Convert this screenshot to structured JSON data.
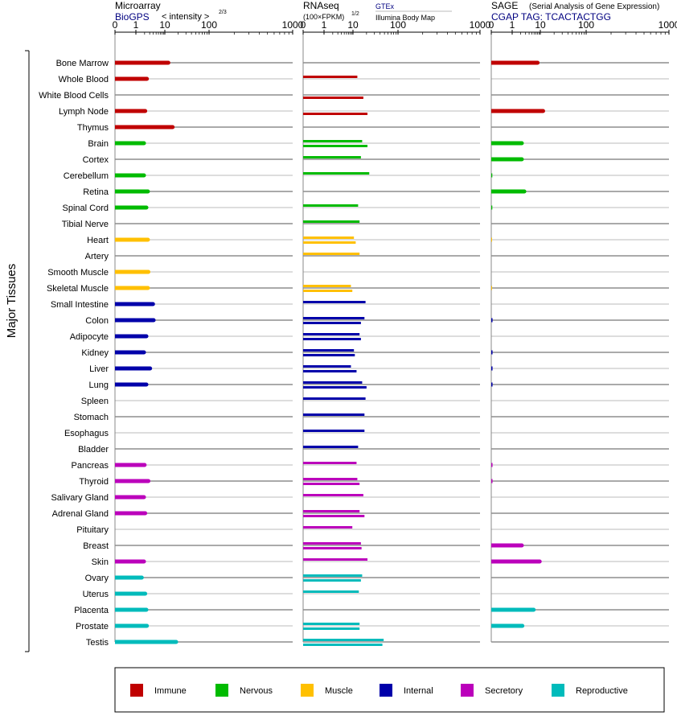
{
  "chart_data": {
    "type": "bar",
    "y_axis_label": "Major Tissues",
    "tick_labels": [
      "0",
      "1",
      "10",
      "100",
      "1000"
    ],
    "panels": [
      {
        "id": "microarray",
        "title": "Microarray",
        "source": "BioGPS",
        "unit": "< intensity >",
        "unit_exp": "2/3"
      },
      {
        "id": "rnaseq",
        "title": "RNAseq",
        "unit": "(100×FPKM)",
        "unit_exp": "1/2",
        "source": "GTEx",
        "source2": "Illumina Body Map"
      },
      {
        "id": "sage",
        "title": "SAGE",
        "subtitle": "(Serial Analysis of Gene Expression)",
        "source": "CGAP TAG: TCACTACTGG"
      }
    ],
    "categories": [
      "Immune",
      "Nervous",
      "Muscle",
      "Internal",
      "Secretory",
      "Reproductive"
    ],
    "colors": {
      "Immune": "#c00000",
      "Nervous": "#00bb00",
      "Muscle": "#ffc000",
      "Internal": "#0000aa",
      "Secretory": "#bb00bb",
      "Reproductive": "#00bbbb"
    },
    "tissues": [
      {
        "name": "Bone Marrow",
        "cat": "Immune",
        "micro": 12,
        "gtex": null,
        "ibm": null,
        "sage": 8
      },
      {
        "name": "Whole Blood",
        "cat": "Immune",
        "micro": 2.4,
        "gtex": 12.5,
        "ibm": null,
        "sage": null
      },
      {
        "name": "White Blood Cells",
        "cat": "Immune",
        "micro": null,
        "gtex": null,
        "ibm": 17,
        "sage": null
      },
      {
        "name": "Lymph Node",
        "cat": "Immune",
        "micro": 2.1,
        "gtex": null,
        "ibm": 21,
        "sage": 11.5
      },
      {
        "name": "Thymus",
        "cat": "Immune",
        "micro": 15,
        "gtex": null,
        "ibm": null,
        "sage": null
      },
      {
        "name": "Brain",
        "cat": "Nervous",
        "micro": 1.9,
        "gtex": 16,
        "ibm": 21,
        "sage": 2.2
      },
      {
        "name": "Cortex",
        "cat": "Nervous",
        "micro": null,
        "gtex": 15,
        "ibm": null,
        "sage": 2.2
      },
      {
        "name": "Cerebellum",
        "cat": "Nervous",
        "micro": 1.9,
        "gtex": 23,
        "ibm": null,
        "sage": 0.05
      },
      {
        "name": "Retina",
        "cat": "Nervous",
        "micro": 2.6,
        "gtex": null,
        "ibm": null,
        "sage": 2.7
      },
      {
        "name": "Spinal Cord",
        "cat": "Nervous",
        "micro": 2.3,
        "gtex": 13,
        "ibm": null,
        "sage": 0.05
      },
      {
        "name": "Tibial Nerve",
        "cat": "Nervous",
        "micro": null,
        "gtex": 14,
        "ibm": null,
        "sage": null
      },
      {
        "name": "Heart",
        "cat": "Muscle",
        "micro": 2.6,
        "gtex": 10.5,
        "ibm": 11.5,
        "sage": 0.03
      },
      {
        "name": "Artery",
        "cat": "Muscle",
        "micro": null,
        "gtex": 14,
        "ibm": null,
        "sage": null
      },
      {
        "name": "Smooth Muscle",
        "cat": "Muscle",
        "micro": 2.7,
        "gtex": null,
        "ibm": null,
        "sage": null
      },
      {
        "name": "Skeletal Muscle",
        "cat": "Muscle",
        "micro": 2.6,
        "gtex": 8.5,
        "ibm": 9.5,
        "sage": 0.03
      },
      {
        "name": "Small Intestine",
        "cat": "Internal",
        "micro": 3.9,
        "gtex": 19,
        "ibm": null,
        "sage": null
      },
      {
        "name": "Colon",
        "cat": "Internal",
        "micro": 4.1,
        "gtex": 18,
        "ibm": 15,
        "sage": 0.06
      },
      {
        "name": "Adipocyte",
        "cat": "Internal",
        "micro": 2.3,
        "gtex": 14,
        "ibm": 15,
        "sage": null
      },
      {
        "name": "Kidney",
        "cat": "Internal",
        "micro": 1.9,
        "gtex": 10.5,
        "ibm": 11,
        "sage": 0.06
      },
      {
        "name": "Liver",
        "cat": "Internal",
        "micro": 3.1,
        "gtex": 8.5,
        "ibm": 12,
        "sage": 0.06
      },
      {
        "name": "Lung",
        "cat": "Internal",
        "micro": 2.3,
        "gtex": 16,
        "ibm": 20,
        "sage": 0.06
      },
      {
        "name": "Spleen",
        "cat": "Internal",
        "micro": null,
        "gtex": 19,
        "ibm": null,
        "sage": null
      },
      {
        "name": "Stomach",
        "cat": "Internal",
        "micro": null,
        "gtex": 18,
        "ibm": null,
        "sage": null
      },
      {
        "name": "Esophagus",
        "cat": "Internal",
        "micro": null,
        "gtex": 18,
        "ibm": null,
        "sage": null
      },
      {
        "name": "Bladder",
        "cat": "Internal",
        "micro": null,
        "gtex": 13,
        "ibm": null,
        "sage": null
      },
      {
        "name": "Pancreas",
        "cat": "Secretory",
        "micro": 2.0,
        "gtex": 12,
        "ibm": null,
        "sage": 0.06
      },
      {
        "name": "Thyroid",
        "cat": "Secretory",
        "micro": 2.7,
        "gtex": 12.5,
        "ibm": 14,
        "sage": 0.06
      },
      {
        "name": "Salivary Gland",
        "cat": "Secretory",
        "micro": 1.9,
        "gtex": 17,
        "ibm": null,
        "sage": null
      },
      {
        "name": "Adrenal Gland",
        "cat": "Secretory",
        "micro": 2.1,
        "gtex": 14,
        "ibm": 18,
        "sage": null
      },
      {
        "name": "Pituitary",
        "cat": "Secretory",
        "micro": null,
        "gtex": 9.5,
        "ibm": null,
        "sage": null
      },
      {
        "name": "Breast",
        "cat": "Secretory",
        "micro": null,
        "gtex": 15,
        "ibm": 15.5,
        "sage": 2.2
      },
      {
        "name": "Skin",
        "cat": "Secretory",
        "micro": 1.9,
        "gtex": 21,
        "ibm": null,
        "sage": 9.5
      },
      {
        "name": "Ovary",
        "cat": "Reproductive",
        "micro": 1.6,
        "gtex": 16,
        "ibm": 15,
        "sage": null
      },
      {
        "name": "Uterus",
        "cat": "Reproductive",
        "micro": 2.1,
        "gtex": 13.5,
        "ibm": null,
        "sage": null
      },
      {
        "name": "Placenta",
        "cat": "Reproductive",
        "micro": 2.3,
        "gtex": null,
        "ibm": null,
        "sage": 5.8
      },
      {
        "name": "Prostate",
        "cat": "Reproductive",
        "micro": 2.4,
        "gtex": 14,
        "ibm": 14,
        "sage": 2.3
      },
      {
        "name": "Testis",
        "cat": "Reproductive",
        "micro": 18,
        "gtex": 48,
        "ibm": 45,
        "sage": null
      }
    ]
  }
}
